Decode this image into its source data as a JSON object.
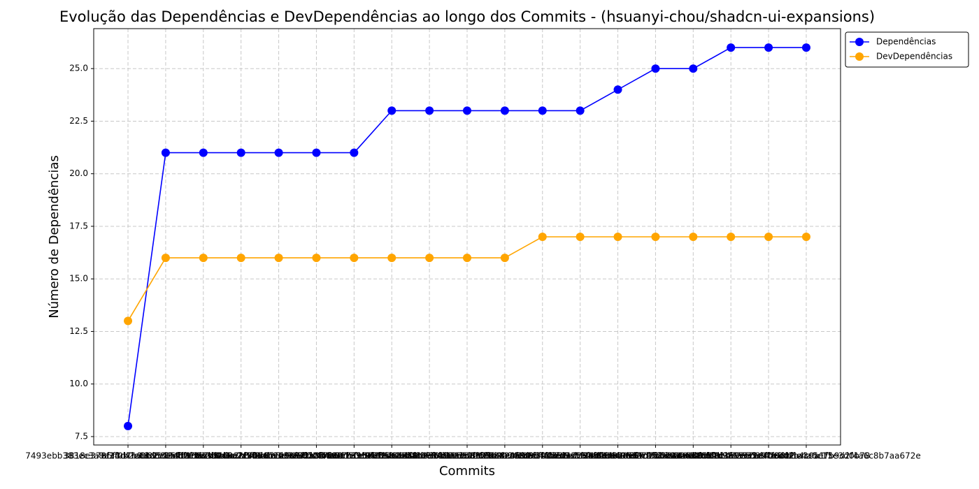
{
  "chart_data": {
    "type": "line",
    "title": "Evolução das Dependências e DevDependências ao longo dos Commits - (hsuanyi-chou/shadcn-ui-expansions)",
    "x_label": "Commits",
    "y_label": "Número de Dependências",
    "categories": [
      "7493ebb383ec3a8a3f0b2e64d5c1a9f7e8b2c4d1",
      "3818e378f14c47a0b95d2e6f1c8a3b7d9e2f5a64",
      "a5f3d7b0e82c164b9f3a7d5e0c2b8f4a6d1e9c37",
      "c2d88e5f1a7b3d9046e2c8f5b1a3d7e9f0c4b682",
      "f19b6c3d2e8a7f5014b9d3c6e2a8f7b5d1c0e943",
      "8d4e2a7f9c1b5e3068d2f4a9c7b1e5d3f8a6c210",
      "b7a1c9e3f5d2084b6e1a3c9f7d5b2e8a4c6f0d15",
      "e6f2b8d4a1c7395e0f2b6d8a4c1e7f3b9d5a2c78",
      "2c9d5f1b7e3a846d0c9f5b1e7a3d8c2f6b4e0a91",
      "9a3e7c1d5f2b684a0e3c7d1f5b9a2e6c8d4f0b26",
      "4f8b2d6a9e1c537f0b8d2a6e9c1f4b7d3a5e0c83",
      "d1c5a9f3b7e2064c8a5f9d3b1e7c2a6f4d8b0e57",
      "6e2a8c4f1d9b735e0a2c8f4d1b6e9a3c7f5d0b14",
      "0b7f3e9a5c1d284f6b3e9c5a1d7f2b8e4a6c0d69",
      "5d9c1f7b3a8e406d2c9f1b7e3a5d8c6f0b4e2a35",
      "a8e4b2d6f9c1573a0e4d2b6f8c1a9e5d3b7f0c42",
      "3f1d7b5e9a2c846f0d1b7e5a3c9f2d8b6e4a0c17",
      "c4a6e0f8b2d9315c7a6f0e8d2b4c9a1f5e3d0b78",
      "8e5b1d3f7a9c2e4b6d0f1a3c5e7b9d2f4a6c8b7aa672e"
    ],
    "series": [
      {
        "name": "Dependências",
        "color": "#0000ff",
        "values": [
          8,
          21,
          21,
          21,
          21,
          21,
          21,
          23,
          23,
          23,
          23,
          23,
          23,
          24,
          25,
          25,
          26,
          26,
          26
        ]
      },
      {
        "name": "DevDependências",
        "color": "#ffa500",
        "values": [
          13,
          16,
          16,
          16,
          16,
          16,
          16,
          16,
          16,
          16,
          16,
          17,
          17,
          17,
          17,
          17,
          17,
          17,
          17
        ]
      }
    ],
    "ylim": [
      7.1,
      26.9
    ],
    "yticks": [
      {
        "value": 7.5,
        "label": "7.5"
      },
      {
        "value": 10,
        "label": "10.0"
      },
      {
        "value": 12.5,
        "label": "12.5"
      },
      {
        "value": 15,
        "label": "15.0"
      },
      {
        "value": 17.5,
        "label": "17.5"
      },
      {
        "value": 20,
        "label": "20.0"
      },
      {
        "value": 22.5,
        "label": "22.5"
      },
      {
        "value": 25,
        "label": "25.0"
      }
    ],
    "grid": true,
    "legend": "outside-upper-right"
  }
}
